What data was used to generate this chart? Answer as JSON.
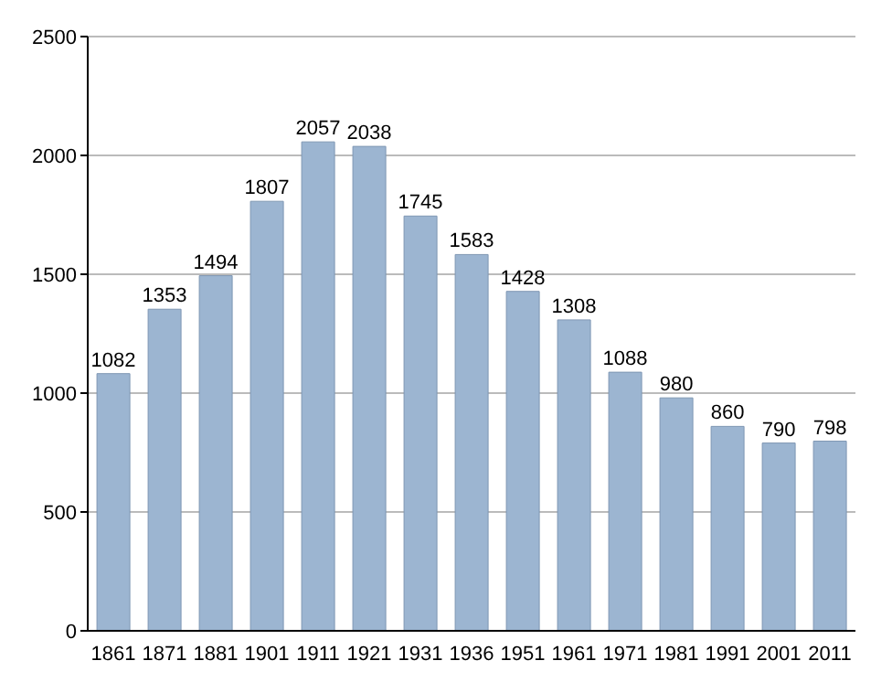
{
  "chart_data": {
    "type": "bar",
    "categories": [
      "1861",
      "1871",
      "1881",
      "1901",
      "1911",
      "1921",
      "1931",
      "1936",
      "1951",
      "1961",
      "1971",
      "1981",
      "1991",
      "2001",
      "2011"
    ],
    "values": [
      1082,
      1353,
      1494,
      1807,
      2057,
      2038,
      1745,
      1583,
      1428,
      1308,
      1088,
      980,
      860,
      790,
      798
    ],
    "color": "#9cb5d1",
    "ylim": [
      0,
      2500
    ],
    "yticks": [
      0,
      500,
      1000,
      1500,
      2000,
      2500
    ],
    "grid": "y",
    "data_labels": true
  }
}
